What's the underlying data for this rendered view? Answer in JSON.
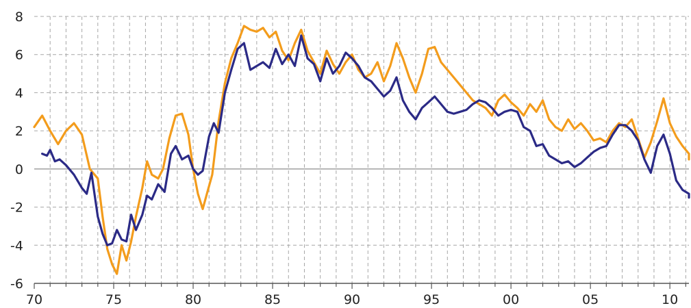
{
  "chart_data": {
    "type": "line",
    "title": "",
    "xlabel": "",
    "ylabel": "",
    "xlim": [
      1970,
      2011.2
    ],
    "ylim": [
      -6,
      8
    ],
    "grid": true,
    "legend": "none",
    "y_ticks": [
      {
        "value": -6,
        "label": "-6"
      },
      {
        "value": -4,
        "label": "-4"
      },
      {
        "value": -2,
        "label": "-2"
      },
      {
        "value": 0,
        "label": "0"
      },
      {
        "value": 2,
        "label": "2"
      },
      {
        "value": 4,
        "label": "4"
      },
      {
        "value": 6,
        "label": "6"
      },
      {
        "value": 8,
        "label": "8"
      }
    ],
    "x_ticks": [
      {
        "value": 1970,
        "label": "70"
      },
      {
        "value": 1975,
        "label": "75"
      },
      {
        "value": 1980,
        "label": "80"
      },
      {
        "value": 1985,
        "label": "85"
      },
      {
        "value": 1990,
        "label": "90"
      },
      {
        "value": 1995,
        "label": "95"
      },
      {
        "value": 2000,
        "label": "00"
      },
      {
        "value": 2005,
        "label": "05"
      },
      {
        "value": 2010,
        "label": "10"
      }
    ],
    "series": [
      {
        "color": "#f39c1c",
        "points": [
          [
            1970.0,
            2.2
          ],
          [
            1970.5,
            2.8
          ],
          [
            1971.0,
            2.0
          ],
          [
            1971.5,
            1.3
          ],
          [
            1972.0,
            2.0
          ],
          [
            1972.5,
            2.4
          ],
          [
            1973.0,
            1.8
          ],
          [
            1973.5,
            0.0
          ],
          [
            1974.0,
            -0.5
          ],
          [
            1974.3,
            -2.5
          ],
          [
            1974.6,
            -4.2
          ],
          [
            1974.9,
            -5.0
          ],
          [
            1975.2,
            -5.5
          ],
          [
            1975.5,
            -4.0
          ],
          [
            1975.8,
            -4.8
          ],
          [
            1976.1,
            -3.8
          ],
          [
            1976.4,
            -2.5
          ],
          [
            1976.8,
            -1.0
          ],
          [
            1977.1,
            0.4
          ],
          [
            1977.4,
            -0.3
          ],
          [
            1977.8,
            -0.5
          ],
          [
            1978.1,
            0.0
          ],
          [
            1978.5,
            1.6
          ],
          [
            1978.9,
            2.8
          ],
          [
            1979.3,
            2.9
          ],
          [
            1979.7,
            1.8
          ],
          [
            1980.0,
            0.0
          ],
          [
            1980.3,
            -1.3
          ],
          [
            1980.6,
            -2.1
          ],
          [
            1980.9,
            -1.2
          ],
          [
            1981.2,
            -0.3
          ],
          [
            1981.6,
            2.5
          ],
          [
            1982.0,
            4.5
          ],
          [
            1982.4,
            5.8
          ],
          [
            1982.8,
            6.6
          ],
          [
            1983.2,
            7.5
          ],
          [
            1983.6,
            7.3
          ],
          [
            1984.0,
            7.2
          ],
          [
            1984.4,
            7.4
          ],
          [
            1984.8,
            6.9
          ],
          [
            1985.2,
            7.2
          ],
          [
            1985.6,
            6.2
          ],
          [
            1986.0,
            5.7
          ],
          [
            1986.4,
            6.6
          ],
          [
            1986.8,
            7.3
          ],
          [
            1987.2,
            6.2
          ],
          [
            1987.6,
            5.6
          ],
          [
            1988.0,
            5.0
          ],
          [
            1988.4,
            6.2
          ],
          [
            1988.8,
            5.5
          ],
          [
            1989.2,
            5.0
          ],
          [
            1989.6,
            5.6
          ],
          [
            1990.0,
            6.0
          ],
          [
            1990.4,
            5.2
          ],
          [
            1990.8,
            4.8
          ],
          [
            1991.2,
            5.0
          ],
          [
            1991.6,
            5.6
          ],
          [
            1992.0,
            4.6
          ],
          [
            1992.4,
            5.4
          ],
          [
            1992.8,
            6.6
          ],
          [
            1993.2,
            5.8
          ],
          [
            1993.6,
            4.8
          ],
          [
            1994.0,
            4.0
          ],
          [
            1994.4,
            5.0
          ],
          [
            1994.8,
            6.3
          ],
          [
            1995.2,
            6.4
          ],
          [
            1995.6,
            5.6
          ],
          [
            1996.0,
            5.2
          ],
          [
            1996.4,
            4.8
          ],
          [
            1996.8,
            4.4
          ],
          [
            1997.2,
            4.0
          ],
          [
            1997.6,
            3.6
          ],
          [
            1998.0,
            3.4
          ],
          [
            1998.4,
            3.2
          ],
          [
            1998.8,
            2.8
          ],
          [
            1999.2,
            3.6
          ],
          [
            1999.6,
            3.9
          ],
          [
            2000.0,
            3.5
          ],
          [
            2000.4,
            3.2
          ],
          [
            2000.8,
            2.8
          ],
          [
            2001.2,
            3.4
          ],
          [
            2001.6,
            3.0
          ],
          [
            2002.0,
            3.6
          ],
          [
            2002.4,
            2.6
          ],
          [
            2002.8,
            2.2
          ],
          [
            2003.2,
            2.0
          ],
          [
            2003.6,
            2.6
          ],
          [
            2004.0,
            2.1
          ],
          [
            2004.4,
            2.4
          ],
          [
            2004.8,
            2.0
          ],
          [
            2005.2,
            1.5
          ],
          [
            2005.6,
            1.6
          ],
          [
            2006.0,
            1.4
          ],
          [
            2006.4,
            2.0
          ],
          [
            2006.8,
            2.4
          ],
          [
            2007.2,
            2.2
          ],
          [
            2007.6,
            2.6
          ],
          [
            2008.0,
            1.6
          ],
          [
            2008.4,
            0.6
          ],
          [
            2008.8,
            1.4
          ],
          [
            2009.2,
            2.5
          ],
          [
            2009.6,
            3.7
          ],
          [
            2010.0,
            2.4
          ],
          [
            2010.4,
            1.7
          ],
          [
            2010.8,
            1.2
          ],
          [
            2011.2,
            0.8
          ],
          [
            2011.6,
            0.5
          ]
        ]
      },
      {
        "color": "#2b2a86",
        "points": [
          [
            1970.5,
            0.8
          ],
          [
            1970.8,
            0.7
          ],
          [
            1971.0,
            1.0
          ],
          [
            1971.3,
            0.4
          ],
          [
            1971.6,
            0.5
          ],
          [
            1972.0,
            0.2
          ],
          [
            1972.5,
            -0.3
          ],
          [
            1973.0,
            -1.0
          ],
          [
            1973.3,
            -1.3
          ],
          [
            1973.6,
            -0.2
          ],
          [
            1974.0,
            -2.5
          ],
          [
            1974.3,
            -3.4
          ],
          [
            1974.6,
            -4.0
          ],
          [
            1974.9,
            -3.9
          ],
          [
            1975.2,
            -3.2
          ],
          [
            1975.5,
            -3.7
          ],
          [
            1975.8,
            -3.8
          ],
          [
            1976.1,
            -2.4
          ],
          [
            1976.4,
            -3.2
          ],
          [
            1976.8,
            -2.4
          ],
          [
            1977.1,
            -1.4
          ],
          [
            1977.4,
            -1.6
          ],
          [
            1977.8,
            -0.8
          ],
          [
            1978.2,
            -1.2
          ],
          [
            1978.6,
            0.8
          ],
          [
            1978.9,
            1.2
          ],
          [
            1979.3,
            0.5
          ],
          [
            1979.7,
            0.7
          ],
          [
            1980.0,
            0.0
          ],
          [
            1980.3,
            -0.3
          ],
          [
            1980.6,
            -0.1
          ],
          [
            1981.0,
            1.7
          ],
          [
            1981.3,
            2.4
          ],
          [
            1981.6,
            1.9
          ],
          [
            1982.0,
            4.0
          ],
          [
            1982.4,
            5.2
          ],
          [
            1982.8,
            6.3
          ],
          [
            1983.2,
            6.6
          ],
          [
            1983.6,
            5.2
          ],
          [
            1984.0,
            5.4
          ],
          [
            1984.4,
            5.6
          ],
          [
            1984.8,
            5.3
          ],
          [
            1985.2,
            6.3
          ],
          [
            1985.6,
            5.5
          ],
          [
            1986.0,
            6.0
          ],
          [
            1986.4,
            5.4
          ],
          [
            1986.8,
            7.0
          ],
          [
            1987.2,
            5.8
          ],
          [
            1987.6,
            5.5
          ],
          [
            1988.0,
            4.6
          ],
          [
            1988.4,
            5.8
          ],
          [
            1988.8,
            5.0
          ],
          [
            1989.2,
            5.4
          ],
          [
            1989.6,
            6.1
          ],
          [
            1990.0,
            5.8
          ],
          [
            1990.4,
            5.4
          ],
          [
            1990.8,
            4.8
          ],
          [
            1991.2,
            4.6
          ],
          [
            1991.6,
            4.2
          ],
          [
            1992.0,
            3.8
          ],
          [
            1992.4,
            4.1
          ],
          [
            1992.8,
            4.8
          ],
          [
            1993.2,
            3.6
          ],
          [
            1993.6,
            3.0
          ],
          [
            1994.0,
            2.6
          ],
          [
            1994.4,
            3.2
          ],
          [
            1994.8,
            3.5
          ],
          [
            1995.2,
            3.8
          ],
          [
            1995.6,
            3.4
          ],
          [
            1996.0,
            3.0
          ],
          [
            1996.4,
            2.9
          ],
          [
            1996.8,
            3.0
          ],
          [
            1997.2,
            3.1
          ],
          [
            1997.6,
            3.4
          ],
          [
            1998.0,
            3.6
          ],
          [
            1998.4,
            3.5
          ],
          [
            1998.8,
            3.2
          ],
          [
            1999.2,
            2.8
          ],
          [
            1999.6,
            3.0
          ],
          [
            2000.0,
            3.1
          ],
          [
            2000.4,
            3.0
          ],
          [
            2000.8,
            2.2
          ],
          [
            2001.2,
            2.0
          ],
          [
            2001.6,
            1.2
          ],
          [
            2002.0,
            1.3
          ],
          [
            2002.4,
            0.7
          ],
          [
            2002.8,
            0.5
          ],
          [
            2003.2,
            0.3
          ],
          [
            2003.6,
            0.4
          ],
          [
            2004.0,
            0.1
          ],
          [
            2004.4,
            0.3
          ],
          [
            2004.8,
            0.6
          ],
          [
            2005.2,
            0.9
          ],
          [
            2005.6,
            1.1
          ],
          [
            2006.0,
            1.2
          ],
          [
            2006.4,
            1.8
          ],
          [
            2006.8,
            2.3
          ],
          [
            2007.2,
            2.3
          ],
          [
            2007.6,
            2.0
          ],
          [
            2008.0,
            1.5
          ],
          [
            2008.4,
            0.5
          ],
          [
            2008.8,
            -0.2
          ],
          [
            2009.2,
            1.2
          ],
          [
            2009.6,
            1.8
          ],
          [
            2010.0,
            0.8
          ],
          [
            2010.4,
            -0.6
          ],
          [
            2010.8,
            -1.1
          ],
          [
            2011.2,
            -1.3
          ],
          [
            2011.6,
            -1.5
          ]
        ]
      }
    ]
  }
}
